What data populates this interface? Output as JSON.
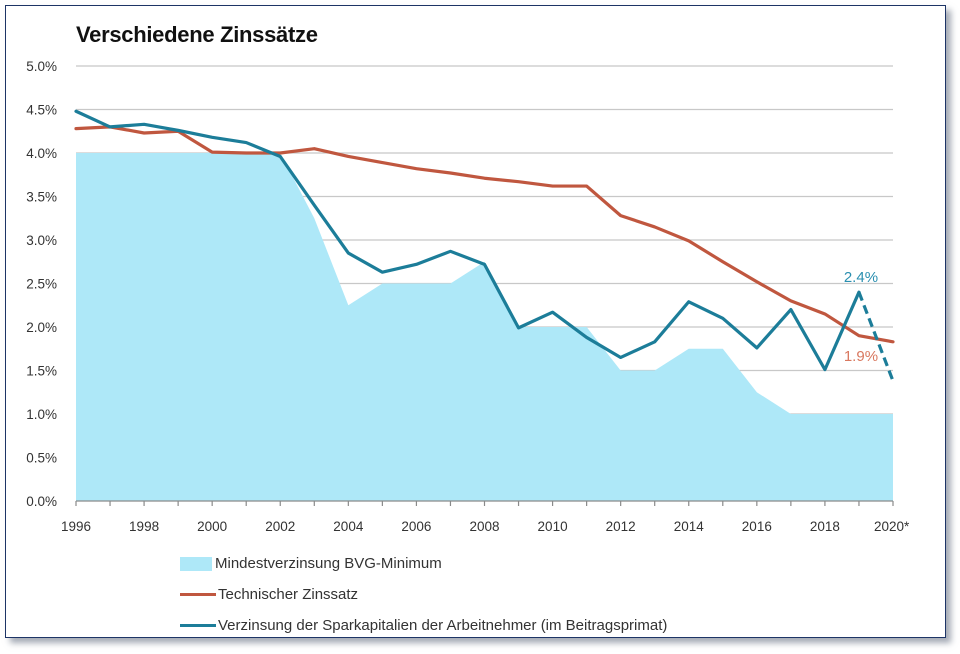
{
  "chart_data": {
    "type": "line",
    "title": "Verschiedene Zinssätze",
    "xlabel": "",
    "ylabel": "",
    "x": [
      1996,
      1997,
      1998,
      1999,
      2000,
      2001,
      2002,
      2003,
      2004,
      2005,
      2006,
      2007,
      2008,
      2009,
      2010,
      2011,
      2012,
      2013,
      2014,
      2015,
      2016,
      2017,
      2018,
      2019,
      2020
    ],
    "x_tick_labels": [
      "1996",
      "1998",
      "2000",
      "2002",
      "2004",
      "2006",
      "2008",
      "2010",
      "2012",
      "2014",
      "2016",
      "2018",
      "2020*"
    ],
    "x_tick_values": [
      1996,
      1998,
      2000,
      2002,
      2004,
      2006,
      2008,
      2010,
      2012,
      2014,
      2016,
      2018,
      2020
    ],
    "xlim": [
      1996,
      2020
    ],
    "ylim": [
      0,
      5
    ],
    "y_tick_labels": [
      "0.0%",
      "0.5%",
      "1.0%",
      "1.5%",
      "2.0%",
      "2.5%",
      "3.0%",
      "3.5%",
      "4.0%",
      "4.5%",
      "5.0%"
    ],
    "y_tick_values": [
      0,
      0.5,
      1.0,
      1.5,
      2.0,
      2.5,
      3.0,
      3.5,
      4.0,
      4.5,
      5.0
    ],
    "grid": true,
    "legend_position": "bottom",
    "series": [
      {
        "name": "Mindestverzinsung BVG-Minimum",
        "kind": "area",
        "color": "#aee8f8",
        "values": [
          4.0,
          4.0,
          4.0,
          4.0,
          4.0,
          4.0,
          4.0,
          3.25,
          2.25,
          2.5,
          2.5,
          2.5,
          2.75,
          2.0,
          2.0,
          2.0,
          1.5,
          1.5,
          1.75,
          1.75,
          1.25,
          1.0,
          1.0,
          1.0,
          1.0
        ]
      },
      {
        "name": "Technischer Zinssatz",
        "kind": "line",
        "color": "#c0573f",
        "values": [
          4.28,
          4.3,
          4.23,
          4.25,
          4.01,
          4.0,
          4.0,
          4.05,
          3.96,
          3.89,
          3.82,
          3.77,
          3.71,
          3.67,
          3.62,
          3.62,
          3.28,
          3.15,
          2.99,
          2.75,
          2.52,
          2.3,
          2.15,
          1.9,
          1.83
        ]
      },
      {
        "name": "Verzinsung der Sparkapitalien der Arbeitnehmer (im Beitragsprimat)",
        "kind": "line",
        "color": "#1c7d99",
        "values": [
          4.48,
          4.3,
          4.33,
          4.26,
          4.18,
          4.12,
          3.96,
          3.4,
          2.85,
          2.63,
          2.72,
          2.87,
          2.72,
          1.99,
          2.17,
          1.88,
          1.65,
          1.83,
          2.29,
          2.1,
          1.76,
          2.2,
          1.51,
          2.4,
          1.38
        ],
        "dashed_from": 2019
      }
    ],
    "annotations": [
      {
        "text": "2.4%",
        "x": 2019,
        "series": "Verzinsung der Sparkapitalien der Arbeitnehmer (im Beitragsprimat)",
        "color": "#2a8fb0"
      },
      {
        "text": "1.9%",
        "x": 2019,
        "series": "Technischer Zinssatz",
        "color": "#d9785f"
      }
    ]
  },
  "legend": {
    "items": [
      {
        "label": "Mindestverzinsung BVG-Minimum",
        "color": "#aee8f8"
      },
      {
        "label": "Technischer Zinssatz",
        "color": "#c0573f"
      },
      {
        "label": "Verzinsung der Sparkapitalien der Arbeitnehmer (im Beitragsprimat)",
        "color": "#1c7d99"
      }
    ]
  }
}
